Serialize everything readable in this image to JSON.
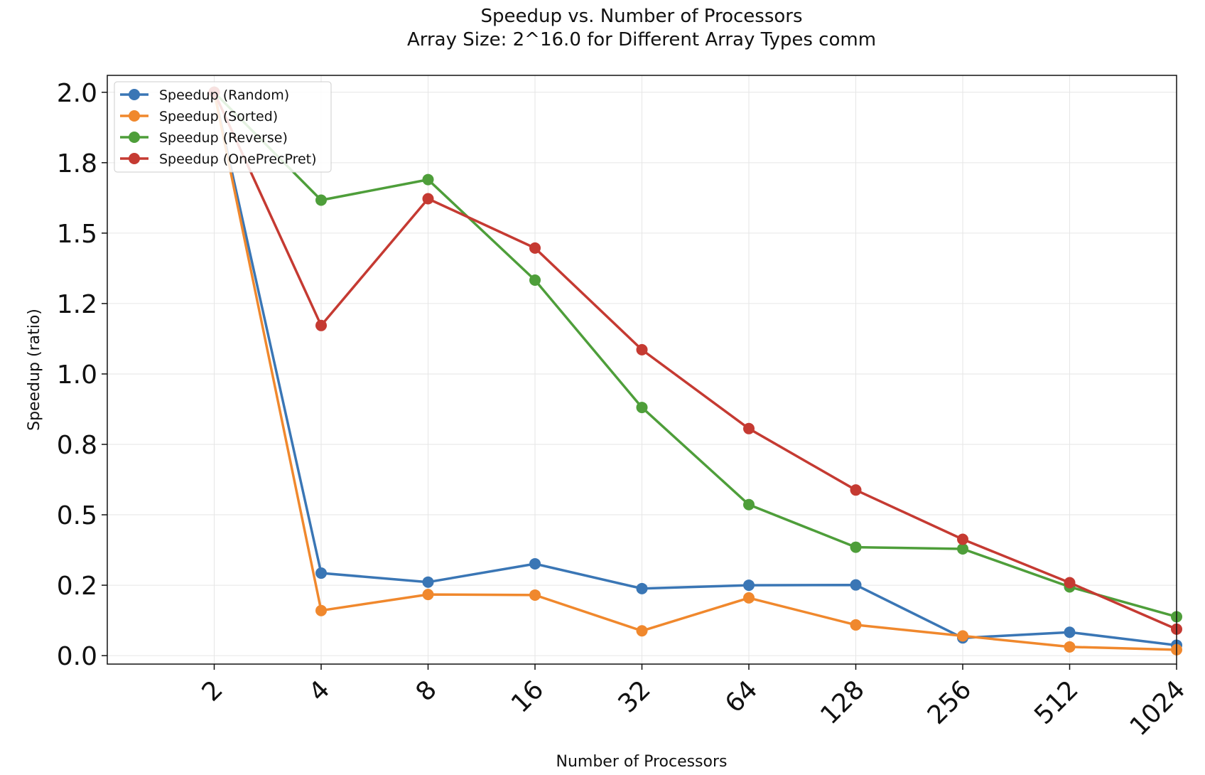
{
  "chart_data": {
    "type": "line",
    "title": "Speedup vs. Number of Processors",
    "subtitle": "Array Size: 2^16.0 for Different Array Types comm",
    "xlabel": "Number of Processors",
    "ylabel": "Speedup (ratio)",
    "x": [
      2,
      4,
      8,
      16,
      32,
      64,
      128,
      256,
      512,
      1024
    ],
    "x_tick_labels": [
      "2",
      "4",
      "8",
      "16",
      "32",
      "64",
      "128",
      "256",
      "512",
      "1024"
    ],
    "x_scale": "log2",
    "xlim": [
      1,
      1024
    ],
    "ylim": [
      -0.03,
      2.06
    ],
    "y_ticks": [
      0.0,
      0.25,
      0.5,
      0.75,
      1.0,
      1.25,
      1.5,
      1.75,
      2.0
    ],
    "y_tick_labels": [
      "0.0",
      "0.2",
      "0.5",
      "0.8",
      "1.0",
      "1.2",
      "1.5",
      "1.8",
      "2.0"
    ],
    "grid": true,
    "legend_position": "top-left",
    "series": [
      {
        "name": "Speedup (Random)",
        "color": "#3a76b5",
        "values": [
          2.0,
          0.293,
          0.261,
          0.326,
          0.238,
          0.25,
          0.251,
          0.063,
          0.083,
          0.037
        ]
      },
      {
        "name": "Speedup (Sorted)",
        "color": "#f0882d",
        "values": [
          2.0,
          0.16,
          0.217,
          0.215,
          0.088,
          0.205,
          0.109,
          0.07,
          0.031,
          0.021
        ]
      },
      {
        "name": "Speedup (Reverse)",
        "color": "#4e9e3a",
        "values": [
          2.0,
          1.617,
          1.69,
          1.333,
          0.881,
          0.536,
          0.385,
          0.379,
          0.244,
          0.138
        ]
      },
      {
        "name": "Speedup (OnePrecPret)",
        "color": "#c53a32",
        "values": [
          2.0,
          1.172,
          1.622,
          1.447,
          1.086,
          0.806,
          0.588,
          0.413,
          0.259,
          0.094
        ]
      }
    ]
  }
}
